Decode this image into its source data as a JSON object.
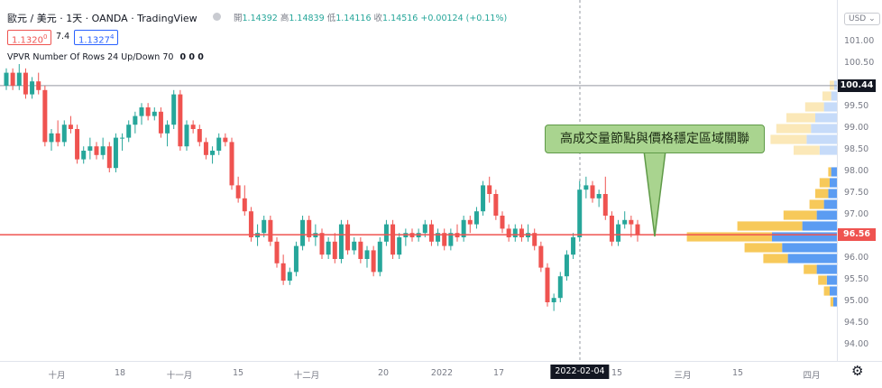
{
  "header": {
    "symbol": "歐元 / 美元 · 1天 · OANDA · TradingView",
    "open_label": "開",
    "open": "1.14392",
    "high_label": "高",
    "high": "1.14839",
    "low_label": "低",
    "low": "1.14116",
    "close_label": "收",
    "close": "1.14516",
    "change": "+0.00124 (+0.11%)",
    "sell_price": "1.1320",
    "sell_price_sup": "0",
    "spread": "7.4",
    "buy_price": "1.1327",
    "buy_price_sup": "4",
    "indicator": "VPVR Number Of Rows 24 Up/Down 70",
    "indicator_values": "0 0 0"
  },
  "currency_menu": "USD",
  "crosshair_date": "2022-02-04",
  "callout_text": "高成交量節點與價格穩定區域關聯",
  "settings_icon": "gear-icon",
  "colors": {
    "up": "#26a69a",
    "down": "#ef5350",
    "vp_up": "#5b9cf2",
    "vp_down": "#f7c95a",
    "vp_up_light": "#c6dbf9",
    "vp_down_light": "#fbe8b8"
  },
  "chart_data": {
    "type": "candlestick",
    "y_axis": {
      "ticks": [
        "101.00",
        "100.50",
        "100.00",
        "99.50",
        "99.00",
        "98.50",
        "98.00",
        "97.50",
        "97.00",
        "96.50",
        "96.00",
        "95.50",
        "95.00",
        "94.50",
        "94.00"
      ],
      "ylim": [
        93.85,
        101.3
      ]
    },
    "last_price_label": "96.56",
    "crosshair_price_label": "100.44",
    "x_axis": {
      "ticks": [
        "十月",
        "18",
        "十一月",
        "15",
        "十二月",
        "20",
        "2022",
        "17",
        "15",
        "三月",
        "15",
        "四月"
      ]
    },
    "candles": [
      {
        "o": 100.0,
        "h": 100.4,
        "l": 99.9,
        "c": 100.3
      },
      {
        "o": 100.3,
        "h": 100.4,
        "l": 99.9,
        "c": 100.0
      },
      {
        "o": 100.0,
        "h": 100.5,
        "l": 99.9,
        "c": 100.3
      },
      {
        "o": 100.3,
        "h": 100.4,
        "l": 99.7,
        "c": 99.8
      },
      {
        "o": 99.8,
        "h": 100.2,
        "l": 99.7,
        "c": 100.1
      },
      {
        "o": 100.1,
        "h": 100.3,
        "l": 99.8,
        "c": 99.9
      },
      {
        "o": 99.9,
        "h": 100.0,
        "l": 98.6,
        "c": 98.7
      },
      {
        "o": 98.7,
        "h": 99.0,
        "l": 98.5,
        "c": 98.9
      },
      {
        "o": 98.9,
        "h": 99.2,
        "l": 98.6,
        "c": 98.7
      },
      {
        "o": 98.7,
        "h": 99.2,
        "l": 98.6,
        "c": 99.1
      },
      {
        "o": 99.1,
        "h": 99.3,
        "l": 98.9,
        "c": 99.0
      },
      {
        "o": 99.0,
        "h": 99.1,
        "l": 98.2,
        "c": 98.3
      },
      {
        "o": 98.3,
        "h": 98.6,
        "l": 98.2,
        "c": 98.5
      },
      {
        "o": 98.5,
        "h": 98.8,
        "l": 98.3,
        "c": 98.6
      },
      {
        "o": 98.6,
        "h": 98.7,
        "l": 98.3,
        "c": 98.4
      },
      {
        "o": 98.4,
        "h": 98.8,
        "l": 98.3,
        "c": 98.6
      },
      {
        "o": 98.6,
        "h": 98.7,
        "l": 98.0,
        "c": 98.1
      },
      {
        "o": 98.1,
        "h": 98.9,
        "l": 98.0,
        "c": 98.8
      },
      {
        "o": 98.8,
        "h": 98.9,
        "l": 98.5,
        "c": 98.8
      },
      {
        "o": 98.8,
        "h": 99.2,
        "l": 98.7,
        "c": 99.1
      },
      {
        "o": 99.1,
        "h": 99.4,
        "l": 98.9,
        "c": 99.3
      },
      {
        "o": 99.3,
        "h": 99.6,
        "l": 99.1,
        "c": 99.5
      },
      {
        "o": 99.5,
        "h": 99.6,
        "l": 99.2,
        "c": 99.3
      },
      {
        "o": 99.3,
        "h": 99.5,
        "l": 99.2,
        "c": 99.4
      },
      {
        "o": 99.4,
        "h": 99.5,
        "l": 98.8,
        "c": 98.9
      },
      {
        "o": 98.9,
        "h": 99.2,
        "l": 98.6,
        "c": 99.1
      },
      {
        "o": 99.1,
        "h": 99.9,
        "l": 99.0,
        "c": 99.8
      },
      {
        "o": 99.8,
        "h": 99.9,
        "l": 98.5,
        "c": 98.6
      },
      {
        "o": 98.6,
        "h": 99.2,
        "l": 98.5,
        "c": 99.1
      },
      {
        "o": 99.1,
        "h": 99.2,
        "l": 98.9,
        "c": 99.0
      },
      {
        "o": 99.0,
        "h": 99.1,
        "l": 98.6,
        "c": 98.7
      },
      {
        "o": 98.7,
        "h": 98.8,
        "l": 98.3,
        "c": 98.4
      },
      {
        "o": 98.4,
        "h": 98.6,
        "l": 98.2,
        "c": 98.5
      },
      {
        "o": 98.5,
        "h": 98.9,
        "l": 98.4,
        "c": 98.8
      },
      {
        "o": 98.8,
        "h": 98.9,
        "l": 98.6,
        "c": 98.7
      },
      {
        "o": 98.7,
        "h": 98.8,
        "l": 97.6,
        "c": 97.7
      },
      {
        "o": 97.7,
        "h": 97.9,
        "l": 97.3,
        "c": 97.4
      },
      {
        "o": 97.4,
        "h": 97.7,
        "l": 97.0,
        "c": 97.1
      },
      {
        "o": 97.1,
        "h": 97.2,
        "l": 96.4,
        "c": 96.5
      },
      {
        "o": 96.5,
        "h": 96.8,
        "l": 96.3,
        "c": 96.6
      },
      {
        "o": 96.6,
        "h": 97.0,
        "l": 96.5,
        "c": 96.9
      },
      {
        "o": 96.9,
        "h": 97.0,
        "l": 96.3,
        "c": 96.4
      },
      {
        "o": 96.4,
        "h": 96.5,
        "l": 95.8,
        "c": 95.9
      },
      {
        "o": 95.9,
        "h": 96.1,
        "l": 95.4,
        "c": 95.5
      },
      {
        "o": 95.5,
        "h": 95.8,
        "l": 95.4,
        "c": 95.7
      },
      {
        "o": 95.7,
        "h": 96.4,
        "l": 95.6,
        "c": 96.3
      },
      {
        "o": 96.3,
        "h": 97.0,
        "l": 96.2,
        "c": 96.9
      },
      {
        "o": 96.9,
        "h": 97.0,
        "l": 96.4,
        "c": 96.5
      },
      {
        "o": 96.5,
        "h": 96.8,
        "l": 96.3,
        "c": 96.6
      },
      {
        "o": 96.6,
        "h": 96.7,
        "l": 96.0,
        "c": 96.1
      },
      {
        "o": 96.1,
        "h": 96.5,
        "l": 96.0,
        "c": 96.4
      },
      {
        "o": 96.4,
        "h": 96.6,
        "l": 95.9,
        "c": 96.0
      },
      {
        "o": 96.0,
        "h": 96.9,
        "l": 95.9,
        "c": 96.8
      },
      {
        "o": 96.8,
        "h": 96.9,
        "l": 96.1,
        "c": 96.2
      },
      {
        "o": 96.2,
        "h": 96.5,
        "l": 96.1,
        "c": 96.4
      },
      {
        "o": 96.4,
        "h": 96.5,
        "l": 95.9,
        "c": 96.0
      },
      {
        "o": 96.0,
        "h": 96.3,
        "l": 95.8,
        "c": 96.2
      },
      {
        "o": 96.2,
        "h": 96.3,
        "l": 95.6,
        "c": 95.7
      },
      {
        "o": 95.7,
        "h": 96.5,
        "l": 95.6,
        "c": 96.4
      },
      {
        "o": 96.4,
        "h": 96.9,
        "l": 96.3,
        "c": 96.8
      },
      {
        "o": 96.8,
        "h": 96.9,
        "l": 96.0,
        "c": 96.1
      },
      {
        "o": 96.1,
        "h": 96.6,
        "l": 96.0,
        "c": 96.5
      },
      {
        "o": 96.5,
        "h": 96.7,
        "l": 96.3,
        "c": 96.6
      },
      {
        "o": 96.6,
        "h": 96.7,
        "l": 96.4,
        "c": 96.5
      },
      {
        "o": 96.5,
        "h": 96.7,
        "l": 96.4,
        "c": 96.6
      },
      {
        "o": 96.6,
        "h": 96.9,
        "l": 96.5,
        "c": 96.8
      },
      {
        "o": 96.8,
        "h": 96.9,
        "l": 96.3,
        "c": 96.4
      },
      {
        "o": 96.4,
        "h": 96.7,
        "l": 96.3,
        "c": 96.6
      },
      {
        "o": 96.6,
        "h": 96.7,
        "l": 96.2,
        "c": 96.3
      },
      {
        "o": 96.3,
        "h": 96.7,
        "l": 96.2,
        "c": 96.6
      },
      {
        "o": 96.6,
        "h": 96.8,
        "l": 96.4,
        "c": 96.5
      },
      {
        "o": 96.5,
        "h": 97.0,
        "l": 96.4,
        "c": 96.9
      },
      {
        "o": 96.9,
        "h": 97.0,
        "l": 96.6,
        "c": 96.8
      },
      {
        "o": 96.8,
        "h": 97.2,
        "l": 96.7,
        "c": 97.1
      },
      {
        "o": 97.1,
        "h": 97.8,
        "l": 97.0,
        "c": 97.7
      },
      {
        "o": 97.7,
        "h": 97.9,
        "l": 97.3,
        "c": 97.5
      },
      {
        "o": 97.5,
        "h": 97.6,
        "l": 96.9,
        "c": 97.0
      },
      {
        "o": 97.0,
        "h": 97.1,
        "l": 96.6,
        "c": 96.7
      },
      {
        "o": 96.7,
        "h": 96.8,
        "l": 96.4,
        "c": 96.5
      },
      {
        "o": 96.5,
        "h": 96.8,
        "l": 96.4,
        "c": 96.7
      },
      {
        "o": 96.7,
        "h": 96.8,
        "l": 96.4,
        "c": 96.5
      },
      {
        "o": 96.5,
        "h": 96.8,
        "l": 96.4,
        "c": 96.6
      },
      {
        "o": 96.6,
        "h": 96.7,
        "l": 96.2,
        "c": 96.3
      },
      {
        "o": 96.3,
        "h": 96.4,
        "l": 95.7,
        "c": 95.8
      },
      {
        "o": 95.8,
        "h": 95.9,
        "l": 94.9,
        "c": 95.0
      },
      {
        "o": 95.0,
        "h": 95.2,
        "l": 94.8,
        "c": 95.1
      },
      {
        "o": 95.1,
        "h": 95.7,
        "l": 95.0,
        "c": 95.6
      },
      {
        "o": 95.6,
        "h": 96.2,
        "l": 95.5,
        "c": 96.1
      },
      {
        "o": 96.1,
        "h": 96.6,
        "l": 96.0,
        "c": 96.5
      },
      {
        "o": 96.5,
        "h": 97.8,
        "l": 96.4,
        "c": 97.6
      },
      {
        "o": 97.6,
        "h": 97.9,
        "l": 97.4,
        "c": 97.7
      },
      {
        "o": 97.7,
        "h": 97.8,
        "l": 97.3,
        "c": 97.4
      },
      {
        "o": 97.4,
        "h": 97.6,
        "l": 97.2,
        "c": 97.5
      },
      {
        "o": 97.5,
        "h": 97.9,
        "l": 96.9,
        "c": 97.0
      },
      {
        "o": 97.0,
        "h": 97.1,
        "l": 96.3,
        "c": 96.4
      },
      {
        "o": 96.4,
        "h": 96.9,
        "l": 96.3,
        "c": 96.8
      },
      {
        "o": 96.8,
        "h": 97.1,
        "l": 96.7,
        "c": 96.9
      },
      {
        "o": 96.9,
        "h": 97.0,
        "l": 96.5,
        "c": 96.8
      },
      {
        "o": 96.8,
        "h": 96.9,
        "l": 96.4,
        "c": 96.56
      }
    ],
    "volume_profile": [
      {
        "price": 100.0,
        "up": 4,
        "down": 6,
        "va": false
      },
      {
        "price": 99.75,
        "up": 8,
        "down": 12,
        "va": false
      },
      {
        "price": 99.5,
        "up": 18,
        "down": 26,
        "va": false
      },
      {
        "price": 99.25,
        "up": 30,
        "down": 40,
        "va": false
      },
      {
        "price": 99.0,
        "up": 36,
        "down": 48,
        "va": false
      },
      {
        "price": 98.75,
        "up": 42,
        "down": 50,
        "va": false
      },
      {
        "price": 98.5,
        "up": 24,
        "down": 36,
        "va": false
      },
      {
        "price": 98.0,
        "up": 8,
        "down": 4,
        "va": true
      },
      {
        "price": 97.75,
        "up": 10,
        "down": 14,
        "va": true
      },
      {
        "price": 97.5,
        "up": 12,
        "down": 18,
        "va": true
      },
      {
        "price": 97.25,
        "up": 18,
        "down": 20,
        "va": true
      },
      {
        "price": 97.0,
        "up": 28,
        "down": 46,
        "va": true
      },
      {
        "price": 96.75,
        "up": 48,
        "down": 90,
        "va": true
      },
      {
        "price": 96.5,
        "up": 90,
        "down": 118,
        "va": true
      },
      {
        "price": 96.25,
        "up": 76,
        "down": 52,
        "va": true
      },
      {
        "price": 96.0,
        "up": 68,
        "down": 34,
        "va": true
      },
      {
        "price": 95.75,
        "up": 28,
        "down": 18,
        "va": true
      },
      {
        "price": 95.5,
        "up": 14,
        "down": 12,
        "va": true
      },
      {
        "price": 95.25,
        "up": 10,
        "down": 8,
        "va": true
      },
      {
        "price": 95.0,
        "up": 5,
        "down": 4,
        "va": true
      }
    ]
  }
}
